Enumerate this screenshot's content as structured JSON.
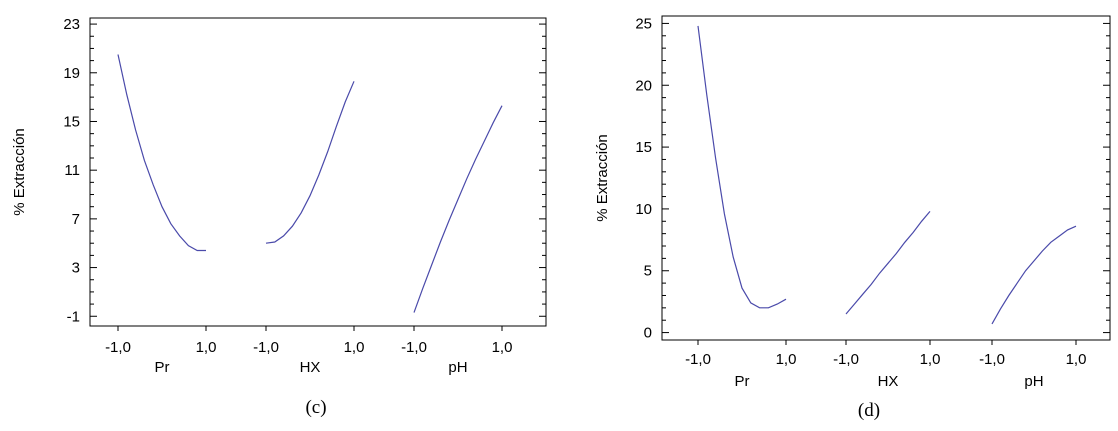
{
  "chart_data": [
    {
      "type": "line",
      "caption": "(c)",
      "ylabel": "% Extracción",
      "ylim": [
        -1.8,
        23.5
      ],
      "yticks": [
        "-1",
        "3",
        "7",
        "11",
        "15",
        "19",
        "23"
      ],
      "factors": [
        {
          "name": "Pr",
          "tick_low": "-1,0",
          "tick_high": "1,0",
          "x": [
            -1.0,
            -0.8,
            -0.6,
            -0.4,
            -0.2,
            0.0,
            0.2,
            0.4,
            0.6,
            0.8,
            1.0
          ],
          "y": [
            20.5,
            17.2,
            14.3,
            11.8,
            9.8,
            8.0,
            6.6,
            5.6,
            4.8,
            4.4,
            4.4
          ]
        },
        {
          "name": "HX",
          "tick_low": "-1,0",
          "tick_high": "1,0",
          "x": [
            -1.0,
            -0.8,
            -0.6,
            -0.4,
            -0.2,
            0.0,
            0.2,
            0.4,
            0.6,
            0.8,
            1.0
          ],
          "y": [
            5.0,
            5.1,
            5.6,
            6.4,
            7.5,
            8.9,
            10.6,
            12.5,
            14.6,
            16.6,
            18.3
          ]
        },
        {
          "name": "pH",
          "tick_low": "-1,0",
          "tick_high": "1,0",
          "x": [
            -1.0,
            -0.8,
            -0.6,
            -0.4,
            -0.2,
            0.0,
            0.2,
            0.4,
            0.6,
            0.8,
            1.0
          ],
          "y": [
            -0.7,
            1.3,
            3.2,
            5.1,
            6.9,
            8.6,
            10.3,
            11.9,
            13.4,
            14.9,
            16.3
          ]
        }
      ]
    },
    {
      "type": "line",
      "caption": "(d)",
      "ylabel": "% Extracción",
      "ylim": [
        -0.6,
        25.6
      ],
      "yticks": [
        "0",
        "5",
        "10",
        "15",
        "20",
        "25"
      ],
      "factors": [
        {
          "name": "Pr",
          "tick_low": "-1,0",
          "tick_high": "1,0",
          "x": [
            -1.0,
            -0.8,
            -0.6,
            -0.4,
            -0.2,
            0.0,
            0.2,
            0.4,
            0.6,
            0.8,
            1.0
          ],
          "y": [
            24.8,
            19.2,
            14.1,
            9.6,
            6.1,
            3.6,
            2.4,
            2.0,
            2.0,
            2.3,
            2.7
          ]
        },
        {
          "name": "HX",
          "tick_low": "-1,0",
          "tick_high": "1,0",
          "x": [
            -1.0,
            -0.8,
            -0.6,
            -0.4,
            -0.2,
            0.0,
            0.2,
            0.4,
            0.6,
            0.8,
            1.0
          ],
          "y": [
            1.5,
            2.3,
            3.1,
            3.9,
            4.8,
            5.6,
            6.4,
            7.3,
            8.1,
            9.0,
            9.8
          ]
        },
        {
          "name": "pH",
          "tick_low": "-1,0",
          "tick_high": "1,0",
          "x": [
            -1.0,
            -0.8,
            -0.6,
            -0.4,
            -0.2,
            0.0,
            0.2,
            0.4,
            0.6,
            0.8,
            1.0
          ],
          "y": [
            0.7,
            1.9,
            3.0,
            4.0,
            5.0,
            5.8,
            6.6,
            7.3,
            7.8,
            8.3,
            8.6
          ]
        }
      ]
    }
  ],
  "colors": {
    "curve": "#4a4aaa",
    "axis": "#000000"
  }
}
